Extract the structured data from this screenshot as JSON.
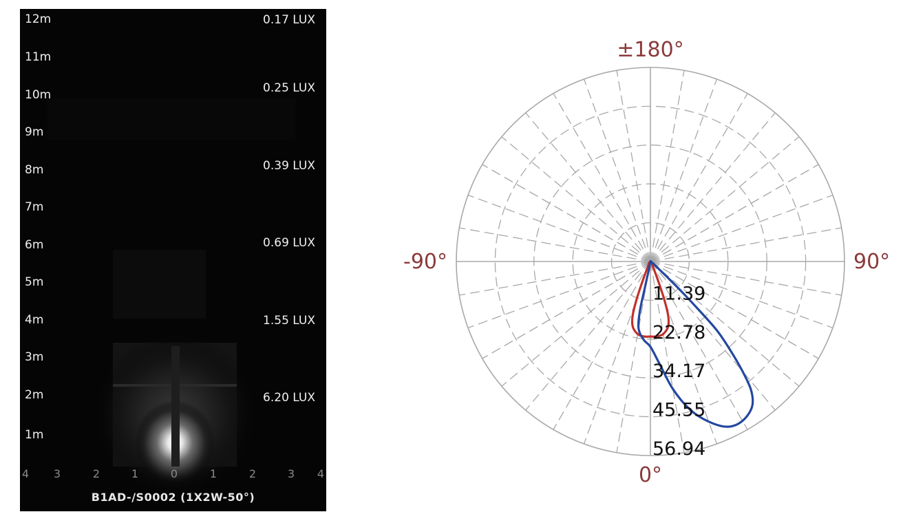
{
  "illuminance_panel": {
    "distance_labels": [
      "12m",
      "11m",
      "10m",
      "9m",
      "8m",
      "7m",
      "6m",
      "5m",
      "4m",
      "3m",
      "2m",
      "1m"
    ],
    "lux_labels": [
      "0.17 LUX",
      "0.25 LUX",
      "0.39 LUX",
      "0.69 LUX",
      "1.55 LUX",
      "6.20 LUX"
    ],
    "x_ticks": [
      "4",
      "3",
      "2",
      "1",
      "0",
      "1",
      "2",
      "3",
      "4"
    ],
    "caption": "B1AD-/S0002 (1X2W-50°)"
  },
  "chart_data": {
    "type": "polar",
    "angle_labels": {
      "top": "±180°",
      "left": "-90°",
      "right": "90°",
      "bottom": "0°"
    },
    "ring_labels": [
      "11.39",
      "22.78",
      "34.17",
      "45.55",
      "56.94"
    ],
    "rmax": 56.94,
    "angle_grid_step_deg": 10,
    "grid": true,
    "series": [
      {
        "color": "#c0312b",
        "points": [
          [
            0,
            22
          ],
          [
            -5,
            22.1
          ],
          [
            -10,
            21.6
          ],
          [
            -15,
            19.9
          ],
          [
            -18,
            17
          ],
          [
            -20,
            12
          ],
          [
            -22,
            6
          ],
          [
            -25,
            2
          ],
          [
            -35,
            0.8
          ],
          [
            -60,
            0.2
          ],
          [
            0,
            0
          ],
          [
            60,
            0.2
          ],
          [
            35,
            0.8
          ],
          [
            25,
            2
          ],
          [
            22,
            6
          ],
          [
            20,
            12
          ],
          [
            18,
            17
          ],
          [
            15,
            19.9
          ],
          [
            10,
            21.6
          ],
          [
            5,
            22.1
          ],
          [
            0,
            22
          ]
        ]
      },
      {
        "color": "#2448a0",
        "points": [
          [
            -10,
            2
          ],
          [
            -12,
            8
          ],
          [
            -12,
            15
          ],
          [
            -10,
            20
          ],
          [
            -5,
            23
          ],
          [
            0,
            25
          ],
          [
            5,
            30
          ],
          [
            10,
            38
          ],
          [
            15,
            45
          ],
          [
            20,
            50
          ],
          [
            25,
            53.5
          ],
          [
            30,
            54
          ],
          [
            35,
            52
          ],
          [
            38,
            48
          ],
          [
            40,
            42
          ],
          [
            42,
            35
          ],
          [
            44,
            28
          ],
          [
            45,
            20
          ],
          [
            46,
            13
          ],
          [
            47,
            7
          ],
          [
            50,
            2
          ],
          [
            60,
            0.5
          ],
          [
            0,
            0
          ],
          [
            -10,
            2
          ]
        ]
      }
    ]
  }
}
